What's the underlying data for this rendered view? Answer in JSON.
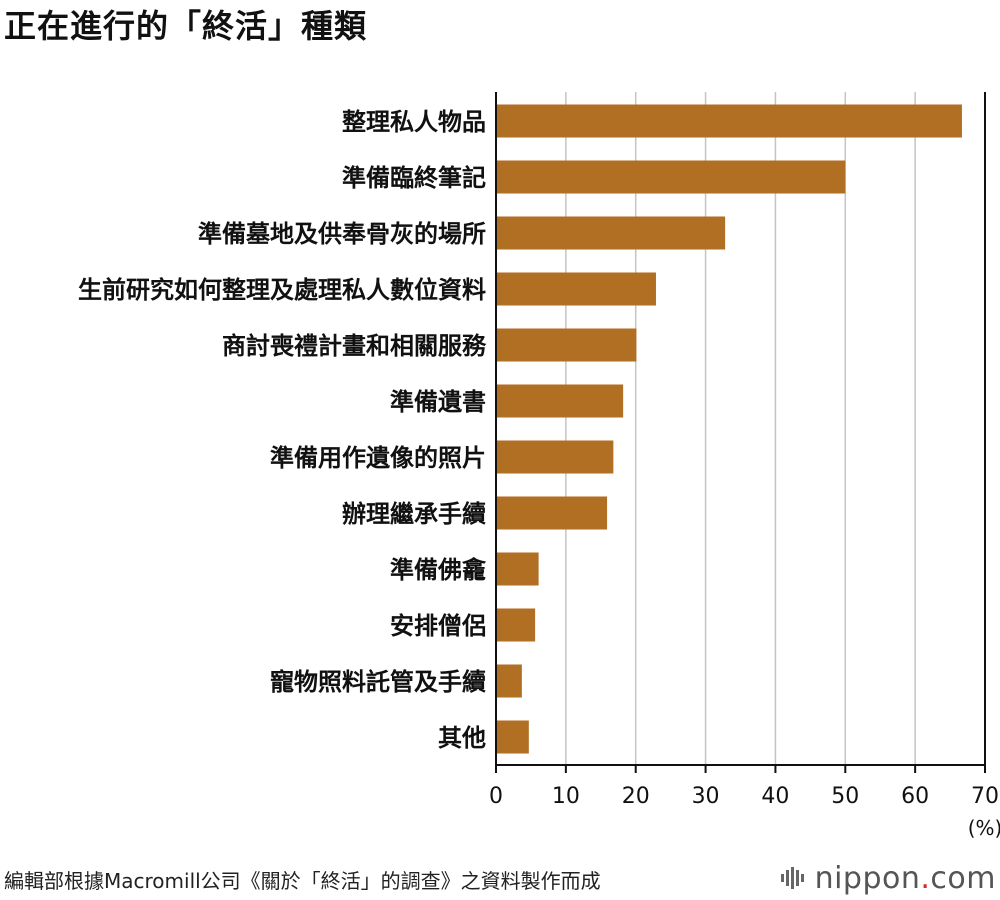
{
  "title": "正在進行的「終活」種類",
  "source": "編輯部根據Macromill公司《關於「終活」的調查》之資料製作而成",
  "logo": {
    "name": "nippon",
    "dot": ".",
    "suffix": "com"
  },
  "colors": {
    "bar": "#b06f22",
    "grid": "#c4c4c4",
    "axis": "#111111"
  },
  "chart_data": {
    "type": "bar",
    "orientation": "horizontal",
    "title": "正在進行的「終活」種類",
    "unit_label": "(%)",
    "xlim": [
      0,
      70
    ],
    "ticks": [
      0,
      10,
      20,
      30,
      40,
      50,
      60,
      70
    ],
    "grid": true,
    "categories": [
      "整理私人物品",
      "準備臨終筆記",
      "準備墓地及供奉骨灰的場所",
      "生前研究如何整理及處理私人數位資料",
      "商討喪禮計畫和相關服務",
      "準備遺書",
      "準備用作遺像的照片",
      "辦理繼承手續",
      "準備佛龕",
      "安排僧侶",
      "寵物照料託管及手續",
      "其他"
    ],
    "values": [
      66.7,
      50.0,
      32.8,
      22.9,
      20.1,
      18.2,
      16.8,
      15.9,
      6.1,
      5.6,
      3.7,
      4.7
    ]
  }
}
